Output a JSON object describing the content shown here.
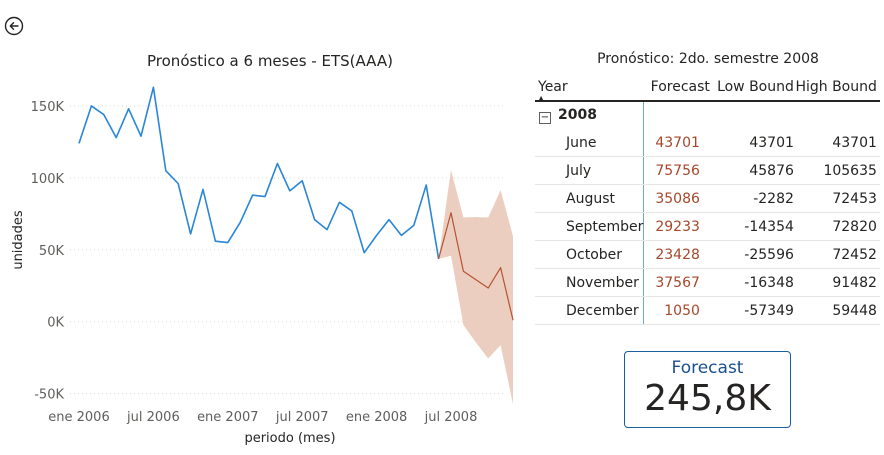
{
  "colors": {
    "actual": "#2a86d7",
    "forecast": "#b5532f",
    "band": "#e9c6b6",
    "grid": "#d9d9d9",
    "card_border": "#1b5e9e"
  },
  "icons": {
    "back": "back-arrow-icon"
  },
  "chart_data": {
    "type": "line",
    "title": "Pronóstico a 6 meses - ETS(AAA)",
    "xlabel": "periodo (mes)",
    "ylabel": "unidades",
    "ylim": [
      -60000,
      175000
    ],
    "yticks": [
      -50000,
      0,
      50000,
      100000,
      150000
    ],
    "ytick_labels": [
      "-50K",
      "0K",
      "50K",
      "100K",
      "150K"
    ],
    "xtick_labels": [
      {
        "label": "ene 2006",
        "date": "2006-01"
      },
      {
        "label": "jul 2006",
        "date": "2006-07"
      },
      {
        "label": "ene 2007",
        "date": "2007-01"
      },
      {
        "label": "jul 2007",
        "date": "2007-07"
      },
      {
        "label": "ene 2008",
        "date": "2008-01"
      },
      {
        "label": "jul 2008",
        "date": "2008-07"
      }
    ],
    "grid": true,
    "legend": "none",
    "series": [
      {
        "role": "actual",
        "x": [
          "2006-01",
          "2006-02",
          "2006-03",
          "2006-04",
          "2006-05",
          "2006-06",
          "2006-07",
          "2006-08",
          "2006-09",
          "2006-10",
          "2006-11",
          "2006-12",
          "2007-01",
          "2007-02",
          "2007-03",
          "2007-04",
          "2007-05",
          "2007-06",
          "2007-07",
          "2007-08",
          "2007-09",
          "2007-10",
          "2007-11",
          "2007-12",
          "2008-01",
          "2008-02",
          "2008-03",
          "2008-04",
          "2008-05",
          "2008-06"
        ],
        "values": [
          124000,
          150000,
          144000,
          128000,
          148000,
          129000,
          163000,
          105000,
          96000,
          61000,
          92000,
          56000,
          55000,
          69000,
          88000,
          87000,
          110000,
          91000,
          98000,
          71000,
          64000,
          83000,
          77000,
          48000,
          60000,
          71000,
          60000,
          67000,
          95000,
          43701
        ]
      },
      {
        "role": "forecast",
        "x": [
          "2008-06",
          "2008-07",
          "2008-08",
          "2008-09",
          "2008-10",
          "2008-11",
          "2008-12"
        ],
        "values": [
          43701,
          75756,
          35086,
          29233,
          23428,
          37567,
          1050
        ],
        "low": [
          43701,
          45876,
          -2282,
          -14354,
          -25596,
          -16348,
          -57349
        ],
        "high": [
          43701,
          105635,
          72453,
          72820,
          72452,
          91482,
          59448
        ]
      }
    ]
  },
  "table": {
    "title": "Pronóstico: 2do. semestre 2008",
    "headers": {
      "year": "Year",
      "forecast": "Forecast",
      "low": "Low Bound",
      "high": "High Bound"
    },
    "group_label": "2008",
    "rows": [
      {
        "month": "June",
        "forecast": "43701",
        "low": "43701",
        "high": "43701"
      },
      {
        "month": "July",
        "forecast": "75756",
        "low": "45876",
        "high": "105635"
      },
      {
        "month": "August",
        "forecast": "35086",
        "low": "-2282",
        "high": "72453"
      },
      {
        "month": "September",
        "forecast": "29233",
        "low": "-14354",
        "high": "72820"
      },
      {
        "month": "October",
        "forecast": "23428",
        "low": "-25596",
        "high": "72452"
      },
      {
        "month": "November",
        "forecast": "37567",
        "low": "-16348",
        "high": "91482"
      },
      {
        "month": "December",
        "forecast": "1050",
        "low": "-57349",
        "high": "59448"
      }
    ]
  },
  "card": {
    "label": "Forecast",
    "value": "245,8K"
  }
}
